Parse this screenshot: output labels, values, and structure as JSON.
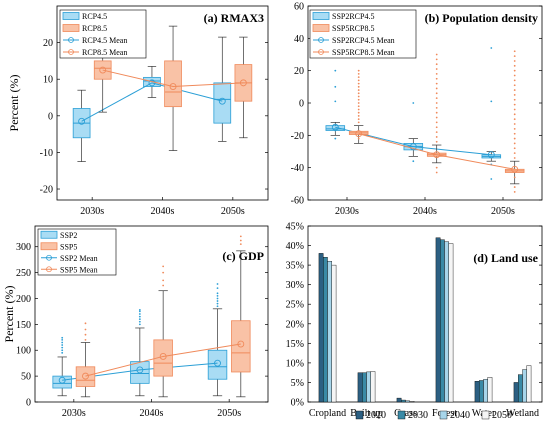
{
  "colors": {
    "blue_fill": "#a9dcf4",
    "blue_line": "#2b9fd6",
    "orange_fill": "#f9c2a6",
    "orange_line": "#f08a5b",
    "bar_2020": "#2c5f82",
    "bar_2030": "#3a8aa6",
    "bar_2040": "#a7d5ea",
    "bar_2050": "#f5f5f5"
  },
  "chart_data": [
    {
      "id": "a",
      "type": "box",
      "title": "(a) RMAX3",
      "ylabel": "Percent (%)",
      "ylim": [
        -23,
        30
      ],
      "yticks": [
        -20,
        -10,
        0,
        10,
        20
      ],
      "categories": [
        "2030s",
        "2040s",
        "2050s"
      ],
      "legend": [
        "RCP4.5",
        "RCP8.5",
        "RCP4.5 Mean",
        "RCP8.5 Mean"
      ],
      "series": [
        {
          "name": "RCP4.5",
          "color": "blue",
          "boxes": [
            {
              "min": -12.5,
              "q1": -6,
              "median": -2,
              "q3": 2,
              "max": 7,
              "mean": -1.5,
              "outliers": []
            },
            {
              "min": 5,
              "q1": 8,
              "median": 9.5,
              "q3": 10.5,
              "max": 13.5,
              "mean": 9,
              "outliers": []
            },
            {
              "min": -7,
              "q1": -2,
              "median": 4.5,
              "q3": 9,
              "max": 21.5,
              "mean": 4,
              "outliers": []
            }
          ]
        },
        {
          "name": "RCP8.5",
          "color": "orange",
          "boxes": [
            {
              "min": 1,
              "q1": 10,
              "median": 13,
              "q3": 15,
              "max": 23.5,
              "mean": 12.5,
              "outliers": []
            },
            {
              "min": -9.5,
              "q1": 2.5,
              "median": 6.5,
              "q3": 15,
              "max": 24.5,
              "mean": 8,
              "outliers": []
            },
            {
              "min": -6,
              "q1": 4,
              "median": 9,
              "q3": 14,
              "max": 21.5,
              "mean": 9,
              "outliers": []
            }
          ]
        }
      ]
    },
    {
      "id": "b",
      "type": "box",
      "title": "(b) Population density",
      "ylabel": "",
      "ylim": [
        -60,
        60
      ],
      "yticks": [
        -60,
        -40,
        -20,
        0,
        20,
        40,
        60
      ],
      "categories": [
        "2030s",
        "2040s",
        "2050s"
      ],
      "legend": [
        "SSP2RCP4.5",
        "SSP5RCP8.5",
        "SSP2RCP4.5 Mean",
        "SSP5RCP8.5 Mean"
      ],
      "series": [
        {
          "name": "SSP2RCP4.5",
          "color": "blue",
          "boxes": [
            {
              "min": -20,
              "q1": -17,
              "median": -16,
              "q3": -14,
              "max": -12,
              "mean": -15,
              "outliers": [
                20,
                10,
                1,
                -22,
                -17
              ]
            },
            {
              "min": -33,
              "q1": -29,
              "median": -27,
              "q3": -25,
              "max": -22,
              "mean": -27,
              "outliers": [
                30,
                0,
                -36
              ]
            },
            {
              "min": -36,
              "q1": -34,
              "median": -33,
              "q3": -32,
              "max": -30,
              "mean": -32,
              "outliers": [
                34,
                1,
                -38,
                -47
              ]
            }
          ]
        },
        {
          "name": "SSP5RCP8.5",
          "color": "orange",
          "boxes": [
            {
              "min": -25,
              "q1": -19.5,
              "median": -18.5,
              "q3": -17.5,
              "max": -14,
              "mean": -19,
              "outliers": [
                20,
                18,
                16,
                14,
                12,
                10,
                8,
                6,
                4,
                2,
                0,
                -2,
                -4,
                -6,
                -8,
                -10,
                -12,
                -22
              ]
            },
            {
              "min": -37,
              "q1": -33,
              "median": -32,
              "q3": -31,
              "max": -26,
              "mean": -32,
              "outliers": [
                30,
                27,
                24,
                21,
                18,
                15,
                12,
                9,
                6,
                3,
                0,
                -3,
                -6,
                -9,
                -12,
                -15,
                -18,
                -21,
                -24,
                -40,
                -43
              ]
            },
            {
              "min": -50,
              "q1": -43,
              "median": -42,
              "q3": -41,
              "max": -36,
              "mean": -41,
              "outliers": [
                32,
                29,
                26,
                23,
                20,
                17,
                14,
                11,
                8,
                5,
                2,
                -1,
                -4,
                -7,
                -10,
                -13,
                -16,
                -19,
                -22,
                -25,
                -28,
                -31,
                -34,
                -46,
                -52,
                -55
              ]
            }
          ]
        }
      ]
    },
    {
      "id": "c",
      "type": "box",
      "title": "(c) GDP",
      "ylabel": "Percent (%)",
      "ylim": [
        0,
        340
      ],
      "yticks": [
        0,
        50,
        100,
        150,
        200,
        250,
        300
      ],
      "categories": [
        "2030s",
        "2040s",
        "2050s"
      ],
      "legend": [
        "SSP2",
        "SSP5",
        "SSP2 Mean",
        "SSP5 Mean"
      ],
      "series": [
        {
          "name": "SSP2",
          "color": "blue",
          "boxes": [
            {
              "min": 12,
              "q1": 27,
              "median": 36,
              "q3": 50,
              "max": 87,
              "mean": 42,
              "outliers": [
                95,
                100,
                105,
                110,
                115,
                120,
                124
              ]
            },
            {
              "min": 12,
              "q1": 36,
              "median": 55,
              "q3": 78,
              "max": 143,
              "mean": 62,
              "outliers": [
                150,
                155,
                160,
                165,
                170,
                175,
                178
              ]
            },
            {
              "min": 12,
              "q1": 44,
              "median": 68,
              "q3": 100,
              "max": 180,
              "mean": 75,
              "outliers": [
                185,
                190,
                195,
                200,
                205,
                210,
                220,
                228
              ]
            }
          ]
        },
        {
          "name": "SSP5",
          "color": "orange",
          "boxes": [
            {
              "min": 10,
              "q1": 30,
              "median": 42,
              "q3": 68,
              "max": 115,
              "mean": 50,
              "outliers": [
                120,
                130,
                140,
                152
              ]
            },
            {
              "min": 10,
              "q1": 50,
              "median": 75,
              "q3": 120,
              "max": 215,
              "mean": 88,
              "outliers": [
                225,
                235,
                250,
                262
              ]
            },
            {
              "min": 10,
              "q1": 58,
              "median": 95,
              "q3": 157,
              "max": 292,
              "mean": 112,
              "outliers": [
                305,
                312,
                320
              ]
            }
          ]
        }
      ]
    },
    {
      "id": "d",
      "type": "bar",
      "title": "(d) Land use",
      "ylabel": "",
      "ylim": [
        0,
        45
      ],
      "yticks": [
        0,
        5,
        10,
        15,
        20,
        25,
        30,
        35,
        40,
        45
      ],
      "ytick_suffix": "%",
      "categories": [
        "Cropland",
        "Built up",
        "Grass",
        "Forest",
        "Water",
        "Wetland"
      ],
      "series": [
        {
          "name": "2020",
          "values": [
            38,
            7.5,
            1.0,
            42,
            5.3,
            5.0
          ]
        },
        {
          "name": "2030",
          "values": [
            37,
            7.5,
            0.5,
            41.5,
            5.5,
            7.0
          ]
        },
        {
          "name": "2040",
          "values": [
            36,
            7.7,
            0.3,
            41,
            5.8,
            8.3
          ]
        },
        {
          "name": "2050",
          "values": [
            35,
            7.8,
            0.2,
            40.5,
            6.3,
            9.3
          ]
        }
      ]
    }
  ]
}
